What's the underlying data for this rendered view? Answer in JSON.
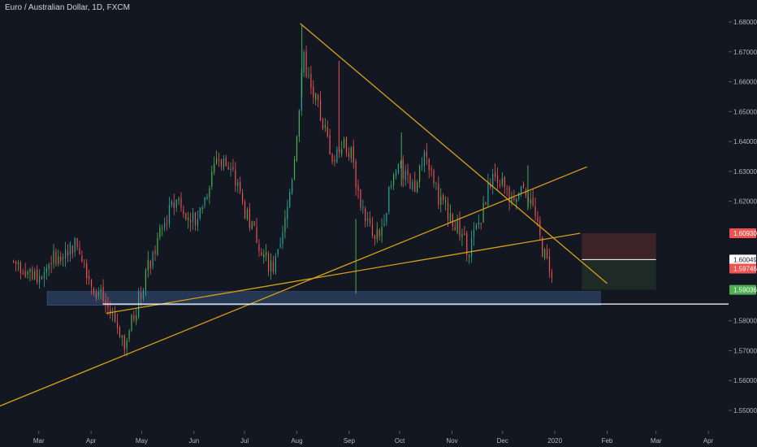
{
  "header": {
    "title": "Euro / Australian Dollar, 1D, FXCM"
  },
  "colors": {
    "background": "#131722",
    "up_candle": "#26a69a",
    "up_candle_bright": "#4caf50",
    "down_candle": "#ef5350",
    "trendline": "#d4a017",
    "support_zone": "#2a3d5c",
    "support_line": "#ffffff",
    "axis_text": "#b2b5be",
    "stop_zone": "#3d2227",
    "target_zone": "#1e2a25"
  },
  "chart_data": {
    "type": "candlestick",
    "title": "Euro / Australian Dollar, 1D, FXCM",
    "xlabel": "",
    "ylabel": "",
    "y_axis_side": "right",
    "ylim": [
      1.5435,
      1.6855
    ],
    "y_ticks": [
      {
        "value": 1.68,
        "label": "1.68000"
      },
      {
        "value": 1.67,
        "label": "1.67000"
      },
      {
        "value": 1.66,
        "label": "1.66000"
      },
      {
        "value": 1.65,
        "label": "1.65000"
      },
      {
        "value": 1.64,
        "label": "1.64000"
      },
      {
        "value": 1.63,
        "label": "1.63000"
      },
      {
        "value": 1.62,
        "label": "1.62000"
      },
      {
        "value": 1.58,
        "label": "1.58000"
      },
      {
        "value": 1.57,
        "label": "1.57000"
      },
      {
        "value": 1.56,
        "label": "1.56000"
      },
      {
        "value": 1.55,
        "label": "1.55000"
      }
    ],
    "x_ticks": [
      {
        "label": "Mar",
        "day": 15
      },
      {
        "label": "Apr",
        "day": 46
      },
      {
        "label": "May",
        "day": 76
      },
      {
        "label": "Jun",
        "day": 107
      },
      {
        "label": "Jul",
        "day": 137
      },
      {
        "label": "Aug",
        "day": 168
      },
      {
        "label": "Sep",
        "day": 199
      },
      {
        "label": "Oct",
        "day": 229
      },
      {
        "label": "Nov",
        "day": 260
      },
      {
        "label": "Dec",
        "day": 290
      },
      {
        "label": "2020",
        "day": 321
      },
      {
        "label": "Feb",
        "day": 352
      },
      {
        "label": "Mar",
        "day": 381
      },
      {
        "label": "Apr",
        "day": 412
      }
    ],
    "xlim_days": [
      -8,
      424
    ],
    "price_tags": [
      {
        "value": 1.6093,
        "label": "1.60930",
        "bg": "#ef5350",
        "fg": "#ffffff"
      },
      {
        "value": 1.60049,
        "label": "1.60049",
        "bg": "#ffffff",
        "fg": "#131722"
      },
      {
        "value": 1.59746,
        "label": "1.59746",
        "bg": "#ef5350",
        "fg": "#ffffff"
      },
      {
        "value": 1.59036,
        "label": "1.59036",
        "bg": "#4caf50",
        "fg": "#ffffff"
      }
    ],
    "anchors": [
      {
        "day": 0,
        "price": 1.6
      },
      {
        "day": 8,
        "price": 1.597
      },
      {
        "day": 15,
        "price": 1.594
      },
      {
        "day": 22,
        "price": 1.6
      },
      {
        "day": 30,
        "price": 1.604
      },
      {
        "day": 38,
        "price": 1.606
      },
      {
        "day": 46,
        "price": 1.593
      },
      {
        "day": 52,
        "price": 1.588
      },
      {
        "day": 57,
        "price": 1.583
      },
      {
        "day": 62,
        "price": 1.578
      },
      {
        "day": 66,
        "price": 1.573
      },
      {
        "day": 72,
        "price": 1.583
      },
      {
        "day": 78,
        "price": 1.595
      },
      {
        "day": 85,
        "price": 1.606
      },
      {
        "day": 92,
        "price": 1.616
      },
      {
        "day": 98,
        "price": 1.621
      },
      {
        "day": 103,
        "price": 1.616
      },
      {
        "day": 108,
        "price": 1.613
      },
      {
        "day": 114,
        "price": 1.622
      },
      {
        "day": 120,
        "price": 1.635
      },
      {
        "day": 126,
        "price": 1.632
      },
      {
        "day": 132,
        "price": 1.626
      },
      {
        "day": 138,
        "price": 1.615
      },
      {
        "day": 145,
        "price": 1.607
      },
      {
        "day": 150,
        "price": 1.6
      },
      {
        "day": 154,
        "price": 1.598
      },
      {
        "day": 158,
        "price": 1.603
      },
      {
        "day": 162,
        "price": 1.616
      },
      {
        "day": 166,
        "price": 1.632
      },
      {
        "day": 170,
        "price": 1.655
      },
      {
        "day": 172,
        "price": 1.668
      },
      {
        "day": 176,
        "price": 1.658
      },
      {
        "day": 180,
        "price": 1.652
      },
      {
        "day": 185,
        "price": 1.643
      },
      {
        "day": 190,
        "price": 1.633
      },
      {
        "day": 195,
        "price": 1.641
      },
      {
        "day": 200,
        "price": 1.636
      },
      {
        "day": 205,
        "price": 1.621
      },
      {
        "day": 210,
        "price": 1.613
      },
      {
        "day": 214,
        "price": 1.606
      },
      {
        "day": 218,
        "price": 1.611
      },
      {
        "day": 222,
        "price": 1.621
      },
      {
        "day": 228,
        "price": 1.632
      },
      {
        "day": 233,
        "price": 1.627
      },
      {
        "day": 238,
        "price": 1.623
      },
      {
        "day": 243,
        "price": 1.637
      },
      {
        "day": 248,
        "price": 1.628
      },
      {
        "day": 253,
        "price": 1.62
      },
      {
        "day": 258,
        "price": 1.616
      },
      {
        "day": 262,
        "price": 1.613
      },
      {
        "day": 266,
        "price": 1.607
      },
      {
        "day": 270,
        "price": 1.604
      },
      {
        "day": 274,
        "price": 1.61
      },
      {
        "day": 278,
        "price": 1.616
      },
      {
        "day": 282,
        "price": 1.626
      },
      {
        "day": 287,
        "price": 1.629
      },
      {
        "day": 291,
        "price": 1.624
      },
      {
        "day": 295,
        "price": 1.62
      },
      {
        "day": 299,
        "price": 1.621
      },
      {
        "day": 303,
        "price": 1.625
      },
      {
        "day": 307,
        "price": 1.62
      },
      {
        "day": 311,
        "price": 1.61
      },
      {
        "day": 314,
        "price": 1.603
      },
      {
        "day": 318,
        "price": 1.598
      },
      {
        "day": 320,
        "price": 1.597
      }
    ],
    "trendlines": [
      {
        "from": {
          "day": -8,
          "price": 1.5515
        },
        "to": {
          "day": 340,
          "price": 1.6315
        },
        "color": "#d4a017"
      },
      {
        "from": {
          "day": 55,
          "price": 1.5825
        },
        "to": {
          "day": 336,
          "price": 1.6093
        },
        "color": "#d4a017"
      },
      {
        "from": {
          "day": 170,
          "price": 1.6795
        },
        "to": {
          "day": 352,
          "price": 1.5925
        },
        "color": "#d4a017"
      }
    ],
    "support_zone": {
      "day_from": 20,
      "day_to": 348,
      "price_top": 1.5898,
      "price_bottom": 1.5852
    },
    "support_line": {
      "day_from": 53,
      "day_to": 424,
      "price": 1.5856
    },
    "position_tool": {
      "day_from": 337,
      "day_to": 381,
      "stop_top": 1.6093,
      "entry": 1.60049,
      "target_bottom": 1.59036
    }
  }
}
